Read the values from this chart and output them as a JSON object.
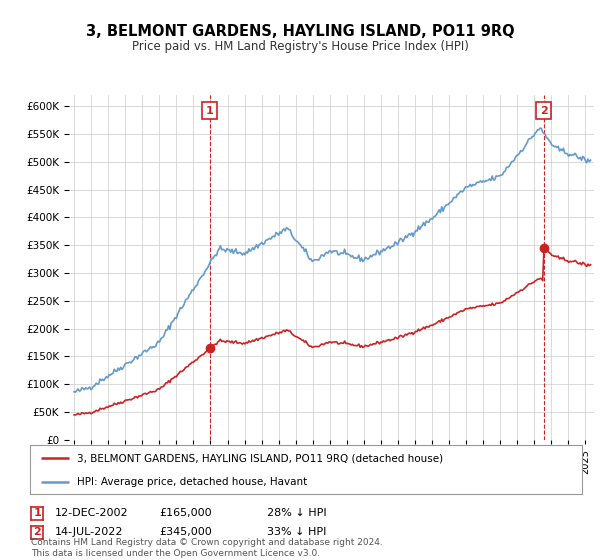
{
  "title": "3, BELMONT GARDENS, HAYLING ISLAND, PO11 9RQ",
  "subtitle": "Price paid vs. HM Land Registry's House Price Index (HPI)",
  "ylim": [
    0,
    620000
  ],
  "yticks": [
    0,
    50000,
    100000,
    150000,
    200000,
    250000,
    300000,
    350000,
    400000,
    450000,
    500000,
    550000,
    600000
  ],
  "xlim_start": 1994.7,
  "xlim_end": 2025.5,
  "legend_line1": "3, BELMONT GARDENS, HAYLING ISLAND, PO11 9RQ (detached house)",
  "legend_line2": "HPI: Average price, detached house, Havant",
  "sale1_date": "12-DEC-2002",
  "sale1_price": "£165,000",
  "sale1_hpi": "28% ↓ HPI",
  "sale2_date": "14-JUL-2022",
  "sale2_price": "£345,000",
  "sale2_hpi": "33% ↓ HPI",
  "footer": "Contains HM Land Registry data © Crown copyright and database right 2024.\nThis data is licensed under the Open Government Licence v3.0.",
  "hpi_color": "#6699cc",
  "sale_color": "#cc2222",
  "grid_color": "#cccccc",
  "background_color": "#ffffff",
  "sale1_x": 2002.95,
  "sale2_x": 2022.54,
  "sale1_price_val": 165000,
  "sale2_price_val": 345000
}
